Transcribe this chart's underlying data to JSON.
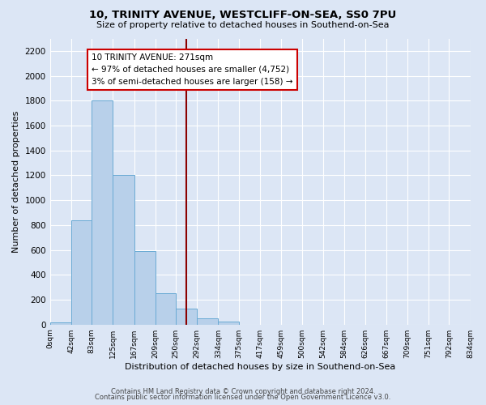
{
  "title": "10, TRINITY AVENUE, WESTCLIFF-ON-SEA, SS0 7PU",
  "subtitle": "Size of property relative to detached houses in Southend-on-Sea",
  "xlabel": "Distribution of detached houses by size in Southend-on-Sea",
  "ylabel": "Number of detached properties",
  "bin_edges": [
    0,
    42,
    83,
    125,
    167,
    209,
    250,
    292,
    334,
    375,
    417,
    459,
    500,
    542,
    584,
    626,
    667,
    709,
    751,
    792,
    834
  ],
  "bin_heights": [
    20,
    840,
    1800,
    1200,
    590,
    255,
    130,
    50,
    25,
    0,
    0,
    0,
    0,
    0,
    0,
    0,
    0,
    0,
    0,
    0
  ],
  "bar_color": "#b8d0ea",
  "bar_edge_color": "#6aaad4",
  "property_value": 271,
  "vline_color": "#8b0000",
  "annotation_line1": "10 TRINITY AVENUE: 271sqm",
  "annotation_line2": "← 97% of detached houses are smaller (4,752)",
  "annotation_line3": "3% of semi-detached houses are larger (158) →",
  "annotation_box_color": "#ffffff",
  "annotation_box_edge": "#cc0000",
  "ylim": [
    0,
    2300
  ],
  "yticks": [
    0,
    200,
    400,
    600,
    800,
    1000,
    1200,
    1400,
    1600,
    1800,
    2000,
    2200
  ],
  "background_color": "#dce6f5",
  "grid_color": "#ffffff",
  "footer_line1": "Contains HM Land Registry data © Crown copyright and database right 2024.",
  "footer_line2": "Contains public sector information licensed under the Open Government Licence v3.0."
}
